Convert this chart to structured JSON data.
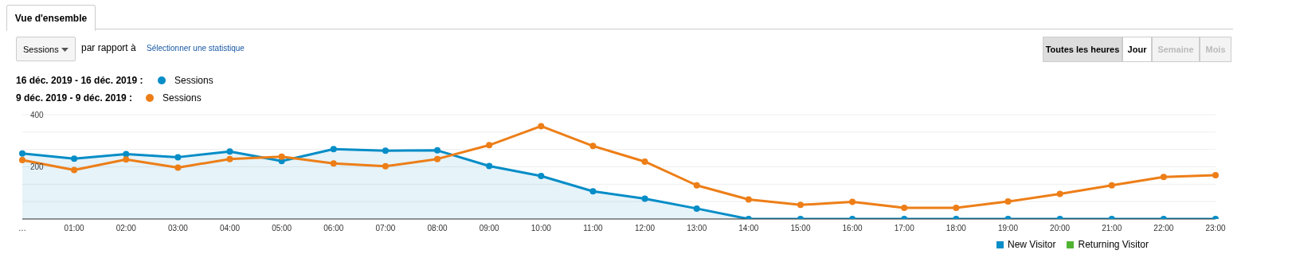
{
  "chart_data": {
    "type": "line",
    "categories": [
      "…",
      "01:00",
      "02:00",
      "03:00",
      "04:00",
      "05:00",
      "06:00",
      "07:00",
      "08:00",
      "09:00",
      "10:00",
      "11:00",
      "12:00",
      "13:00",
      "14:00",
      "15:00",
      "16:00",
      "17:00",
      "18:00",
      "19:00",
      "20:00",
      "21:00",
      "22:00",
      "23:00"
    ],
    "series": [
      {
        "name": "Sessions",
        "type": "area",
        "color": "#058dc7",
        "values": [
          251,
          231,
          249,
          237,
          259,
          222,
          268,
          262,
          263,
          203,
          165,
          106,
          78,
          40,
          0,
          0,
          0,
          0,
          0,
          0,
          0,
          0,
          0,
          0
        ]
      },
      {
        "name": "Sessions",
        "color": "#ed7e17",
        "values": [
          226,
          188,
          228,
          197,
          230,
          239,
          213,
          202,
          230,
          283,
          356,
          280,
          220,
          129,
          75,
          54,
          66,
          43,
          43,
          67,
          96,
          129,
          161,
          168
        ]
      }
    ],
    "ylim": [
      0,
      400
    ],
    "yticks": [
      {
        "value": 0,
        "label": null
      },
      {
        "value": 66.7,
        "label": null
      },
      {
        "value": 133.3,
        "label": null
      },
      200,
      {
        "value": 266.7,
        "label": null
      },
      {
        "value": 333.3,
        "label": null
      },
      400
    ],
    "grid": "y",
    "legend": "top left",
    "marker": "circle",
    "line_style": "solid",
    "annotations": [
      "Vue d'ensemble",
      "Sessions",
      "par rapport à",
      "Sélectionner une statistique",
      "Toutes les heures",
      "Jour",
      "Semaine",
      "Mois",
      "16 déc. 2019 - 16 déc. 2019 :",
      "9 déc. 2019 - 9 déc. 2019 :",
      "New Visitor",
      "Returning Visitor"
    ]
  }
}
